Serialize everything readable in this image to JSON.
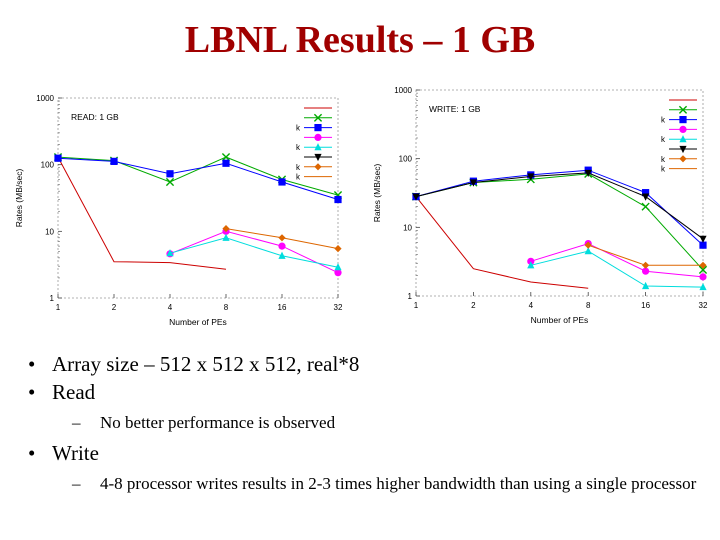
{
  "slide": {
    "title": "LBNL Results – 1 GB",
    "bullets": [
      {
        "text": "Array size – 512 x 512 x 512, real*8",
        "sub": []
      },
      {
        "text": "Read",
        "sub": [
          "No better performance is observed"
        ]
      },
      {
        "text": "Write",
        "sub": [
          "4-8 processor writes results in 2-3 times higher bandwidth than using a single processor"
        ]
      }
    ],
    "bullet_glyph": "•",
    "dash_glyph": "–"
  },
  "chart_data": [
    {
      "type": "line",
      "title": "READ: 1 GB",
      "xlabel": "Number of PEs",
      "ylabel": "Rates (MB/sec)",
      "y_scale": "log",
      "x_scale": "log2",
      "x_ticks": [
        1,
        2,
        4,
        8,
        16,
        32
      ],
      "y_ticks": [
        1,
        10,
        100,
        1000
      ],
      "xlim": [
        1,
        32
      ],
      "ylim": [
        1,
        1000
      ],
      "grid": false,
      "legend_position": "top-right",
      "legend_labels": [
        "",
        "",
        "k",
        "",
        "k",
        "",
        "k",
        "k"
      ],
      "series": [
        {
          "color": "#cc0000",
          "marker": "none",
          "points": [
            [
              1,
              130
            ],
            [
              2,
              3.5
            ],
            [
              4,
              3.4
            ],
            [
              8,
              2.7
            ]
          ]
        },
        {
          "color": "#00aa00",
          "marker": "x",
          "points": [
            [
              1,
              130
            ],
            [
              2,
              115
            ],
            [
              4,
              55
            ],
            [
              8,
              130
            ],
            [
              16,
              60
            ],
            [
              32,
              35
            ]
          ]
        },
        {
          "color": "#0000ff",
          "marker": "square",
          "points": [
            [
              1,
              125
            ],
            [
              2,
              112
            ],
            [
              4,
              73
            ],
            [
              8,
              105
            ],
            [
              16,
              55
            ],
            [
              32,
              30
            ]
          ]
        },
        {
          "color": "#ff00ff",
          "marker": "circle",
          "points": [
            [
              4,
              4.6
            ],
            [
              8,
              10
            ],
            [
              16,
              6
            ],
            [
              32,
              2.4
            ]
          ]
        },
        {
          "color": "#00dddd",
          "marker": "triangle",
          "points": [
            [
              4,
              4.7
            ],
            [
              8,
              8
            ],
            [
              16,
              4.3
            ],
            [
              32,
              2.9
            ]
          ]
        },
        {
          "color": "#000000",
          "marker": "triangle-down",
          "points": []
        },
        {
          "color": "#dd6600",
          "marker": "diamond",
          "points": [
            [
              8,
              11
            ],
            [
              16,
              8
            ],
            [
              32,
              5.5
            ]
          ]
        },
        {
          "color": "#dd6600",
          "marker": "none",
          "points": []
        }
      ]
    },
    {
      "type": "line",
      "title": "WRITE: 1 GB",
      "xlabel": "Number of PEs",
      "ylabel": "Rates (MB/sec)",
      "y_scale": "log",
      "x_scale": "log2",
      "x_ticks": [
        1,
        2,
        4,
        8,
        16,
        32
      ],
      "y_ticks": [
        1,
        10,
        100,
        1000
      ],
      "xlim": [
        1,
        32
      ],
      "ylim": [
        1,
        1000
      ],
      "grid": false,
      "legend_position": "top-right",
      "legend_labels": [
        "",
        "",
        "k",
        "",
        "k",
        "",
        "k",
        "k"
      ],
      "series": [
        {
          "color": "#cc0000",
          "marker": "none",
          "points": [
            [
              1,
              28
            ],
            [
              2,
              2.5
            ],
            [
              4,
              1.6
            ],
            [
              8,
              1.3
            ]
          ]
        },
        {
          "color": "#00aa00",
          "marker": "x",
          "points": [
            [
              1,
              28
            ],
            [
              2,
              45
            ],
            [
              4,
              50
            ],
            [
              8,
              60
            ],
            [
              16,
              20
            ],
            [
              32,
              2.4
            ]
          ]
        },
        {
          "color": "#0000ff",
          "marker": "square",
          "points": [
            [
              1,
              28
            ],
            [
              2,
              47
            ],
            [
              4,
              58
            ],
            [
              8,
              68
            ],
            [
              16,
              32
            ],
            [
              32,
              5.5
            ]
          ]
        },
        {
          "color": "#ff00ff",
          "marker": "circle",
          "points": [
            [
              4,
              3.2
            ],
            [
              8,
              5.8
            ],
            [
              16,
              2.3
            ],
            [
              32,
              1.9
            ]
          ]
        },
        {
          "color": "#00dddd",
          "marker": "triangle",
          "points": [
            [
              4,
              2.8
            ],
            [
              8,
              4.5
            ],
            [
              16,
              1.4
            ],
            [
              32,
              1.35
            ]
          ]
        },
        {
          "color": "#000000",
          "marker": "triangle-down",
          "points": [
            [
              1,
              28
            ],
            [
              2,
              45
            ],
            [
              4,
              55
            ],
            [
              8,
              62
            ],
            [
              16,
              28
            ],
            [
              32,
              6.8
            ]
          ]
        },
        {
          "color": "#dd6600",
          "marker": "diamond",
          "points": [
            [
              8,
              5.5
            ],
            [
              16,
              2.8
            ],
            [
              32,
              2.8
            ]
          ]
        },
        {
          "color": "#dd6600",
          "marker": "none",
          "points": []
        }
      ]
    }
  ]
}
